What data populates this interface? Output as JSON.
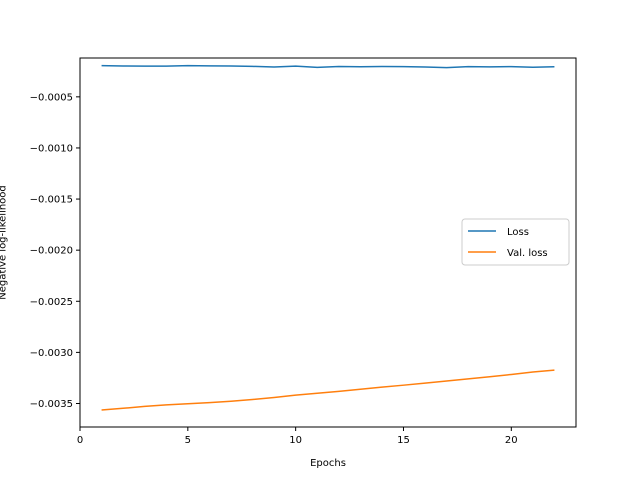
{
  "chart_data": {
    "type": "line",
    "title": "",
    "xlabel": "Epochs",
    "ylabel": "Negative log-likelihood",
    "xlim": [
      0,
      23
    ],
    "ylim": [
      -0.00373,
      -0.00012
    ],
    "xticks": [
      0,
      5,
      10,
      15,
      20
    ],
    "xtick_labels": [
      "0",
      "5",
      "10",
      "15",
      "20"
    ],
    "yticks": [
      -0.0005,
      -0.001,
      -0.0015,
      -0.002,
      -0.0025,
      -0.003,
      -0.0035
    ],
    "ytick_labels": [
      "−0.0005",
      "−0.0010",
      "−0.0015",
      "−0.0020",
      "−0.0025",
      "−0.0030",
      "−0.0035"
    ],
    "grid": false,
    "legend_position": "center-right",
    "x": [
      1,
      2,
      3,
      4,
      5,
      6,
      7,
      8,
      9,
      10,
      11,
      12,
      13,
      14,
      15,
      16,
      17,
      18,
      19,
      20,
      21,
      22
    ],
    "series": [
      {
        "name": "Loss",
        "color": "#1f77b4",
        "values": [
          -0.000195,
          -0.000198,
          -0.0002,
          -0.0002,
          -0.000195,
          -0.000197,
          -0.000198,
          -0.000202,
          -0.000208,
          -0.0002,
          -0.000212,
          -0.000203,
          -0.000206,
          -0.000203,
          -0.000204,
          -0.000208,
          -0.000214,
          -0.000204,
          -0.000207,
          -0.000204,
          -0.00021,
          -0.000206
        ]
      },
      {
        "name": "Val. loss",
        "color": "#ff7f0e",
        "values": [
          -0.003564,
          -0.003547,
          -0.003528,
          -0.003513,
          -0.003502,
          -0.003491,
          -0.003478,
          -0.003461,
          -0.003441,
          -0.003418,
          -0.0034,
          -0.003381,
          -0.003361,
          -0.00334,
          -0.003321,
          -0.003301,
          -0.00328,
          -0.003259,
          -0.003238,
          -0.003216,
          -0.003192,
          -0.003174
        ]
      }
    ]
  }
}
